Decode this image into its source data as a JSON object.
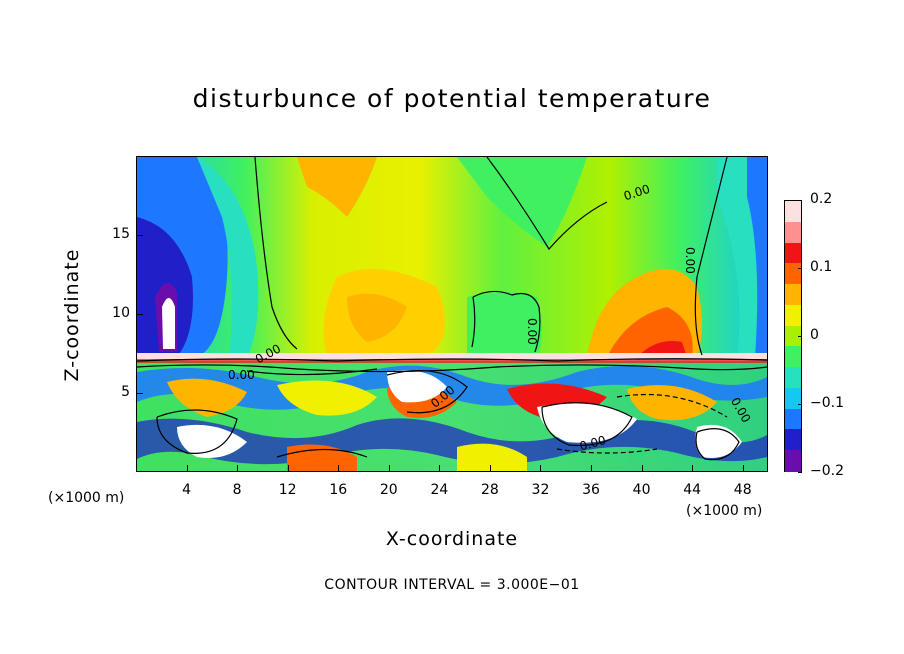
{
  "chart_data": {
    "type": "heatmap",
    "title": "disturbunce of potential temperature",
    "xlabel": "X-coordinate",
    "ylabel": "Z-coordinate",
    "x_unit": "(×1000 m)",
    "x_unit_left": "(×1000 m)",
    "xlim": [
      0,
      50
    ],
    "ylim": [
      0,
      20
    ],
    "x_ticks": [
      4,
      8,
      12,
      16,
      20,
      24,
      28,
      32,
      36,
      40,
      44,
      48
    ],
    "y_ticks": [
      5,
      10,
      15
    ],
    "colorbar": {
      "range": [
        -0.2,
        0.2
      ],
      "ticks": [
        {
          "value": 0.2,
          "label": "0.2"
        },
        {
          "value": 0.1,
          "label": "0.1"
        },
        {
          "value": 0,
          "label": "0"
        },
        {
          "value": -0.1,
          "label": "−0.1"
        },
        {
          "value": -0.2,
          "label": "−0.2"
        }
      ],
      "colors": [
        "#6a0dad",
        "#2020c8",
        "#1e78ff",
        "#14c8f0",
        "#28e0c0",
        "#40f060",
        "#a8f000",
        "#f0f000",
        "#ffb400",
        "#ff6400",
        "#f01414",
        "#ff9090",
        "#ffe0e0"
      ]
    },
    "contour_labels": [
      "0.00",
      "0.00",
      "0.00",
      "0.00",
      "0.00",
      "0.00",
      "0.00",
      "0.00"
    ],
    "contour_interval_text": "CONTOUR INTERVAL = 3.000E−01"
  }
}
